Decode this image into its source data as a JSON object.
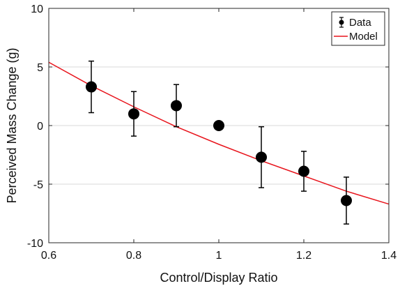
{
  "chart_data": {
    "type": "scatter",
    "xlabel": "Control/Display Ratio",
    "ylabel": "Perceived Mass Change (g)",
    "xlim": [
      0.6,
      1.4
    ],
    "ylim": [
      -10,
      10
    ],
    "xticks": [
      0.6,
      0.8,
      1.0,
      1.2,
      1.4
    ],
    "xtick_labels": [
      "0.6",
      "0.8",
      "1",
      "1.2",
      "1.4"
    ],
    "yticks": [
      -10,
      -5,
      0,
      5,
      10
    ],
    "ytick_labels": [
      "-10",
      "-5",
      "0",
      "5",
      "10"
    ],
    "grid": "horizontal",
    "legend_position": "top-right",
    "series": [
      {
        "name": "Data",
        "kind": "points-with-errorbars",
        "color": "#000000",
        "x": [
          0.7,
          0.8,
          0.9,
          1.0,
          1.1,
          1.2,
          1.3
        ],
        "y": [
          3.3,
          1.0,
          1.7,
          0.0,
          -2.7,
          -3.9,
          -6.4
        ],
        "yerr": [
          2.2,
          1.9,
          1.8,
          0.0,
          2.6,
          1.7,
          2.0
        ]
      },
      {
        "name": "Model",
        "kind": "line",
        "color": "#e8141c",
        "x": [
          0.6,
          0.7,
          0.8,
          0.9,
          1.0,
          1.1,
          1.2,
          1.3,
          1.4
        ],
        "y": [
          5.4,
          3.4,
          1.6,
          -0.1,
          -1.6,
          -3.0,
          -4.3,
          -5.6,
          -6.7
        ]
      }
    ]
  }
}
